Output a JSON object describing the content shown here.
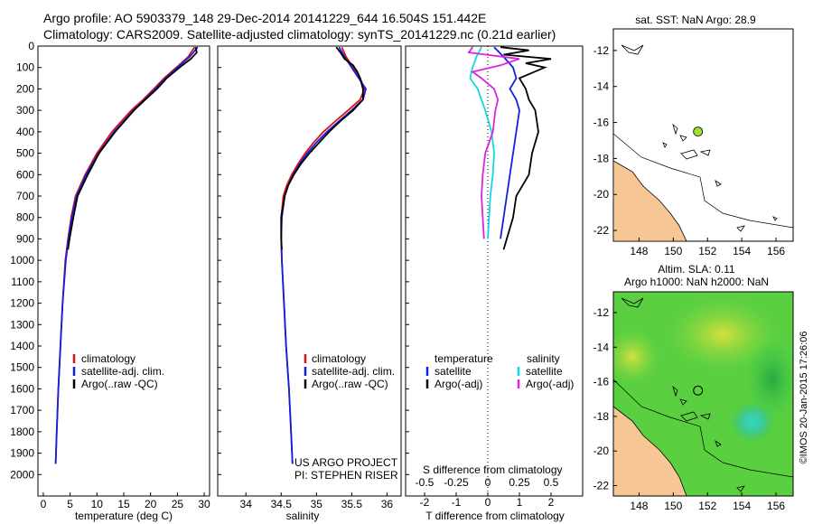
{
  "header": {
    "line1": "Argo profile: AO 5903379_148 29-Dec-2014 20141229_644 16.504S 151.442E",
    "line2": "Climatology: CARS2009. Satellite-adjusted climatology: synTS_20141229.nc (0.21d earlier)"
  },
  "side_credit": "©IMOS 20-Jan-2015 17:26:06",
  "project": {
    "line1": "US ARGO PROJECT",
    "line2": "PI: STEPHEN RISER"
  },
  "depth_ticks": [
    0,
    100,
    200,
    300,
    400,
    500,
    600,
    700,
    800,
    900,
    1000,
    1100,
    1200,
    1300,
    1400,
    1500,
    1600,
    1700,
    1800,
    1900,
    2000
  ],
  "colors": {
    "climatology": "#e01010",
    "satellite": "#1020e0",
    "argo": "#000000",
    "sal_satellite": "#10d8e0",
    "sal_argo": "#e020e0",
    "land": "#f6c694",
    "float_dot": "#a0e030"
  },
  "chart_data": [
    {
      "type": "line",
      "name": "temperature_profile",
      "xlabel": "temperature (deg C)",
      "ylabel": "",
      "xlim": [
        -1,
        31
      ],
      "ylim": [
        2100,
        0
      ],
      "xticks": [
        0,
        5,
        10,
        15,
        20,
        25,
        30
      ],
      "legend": [
        "climatology",
        "satellite-adj. clim.",
        "Argo(..raw -QC)"
      ],
      "legend_position": "lower-center",
      "series": [
        {
          "name": "climatology",
          "depth": [
            5,
            50,
            100,
            150,
            200,
            250,
            300,
            400,
            500,
            600,
            700,
            800,
            900,
            1000,
            1200,
            1400,
            1600,
            1800,
            1950
          ],
          "values": [
            28.2,
            27.0,
            24.8,
            22.5,
            20.6,
            18.6,
            16.4,
            12.8,
            10.0,
            7.8,
            6.0,
            5.2,
            4.6,
            4.1,
            3.6,
            3.2,
            2.8,
            2.5,
            2.3
          ]
        },
        {
          "name": "satellite-adj. clim.",
          "depth": [
            5,
            50,
            100,
            150,
            200,
            250,
            300,
            400,
            500,
            600,
            700,
            800,
            900,
            1000,
            1200,
            1400,
            1600,
            1800,
            1950
          ],
          "values": [
            28.8,
            27.3,
            25.0,
            22.8,
            20.9,
            18.9,
            16.8,
            13.2,
            10.3,
            8.0,
            6.2,
            5.3,
            4.7,
            4.2,
            3.6,
            3.2,
            2.8,
            2.5,
            2.3
          ]
        },
        {
          "name": "Argo(..raw -QC)",
          "depth": [
            5,
            30,
            60,
            100,
            150,
            200,
            250,
            300,
            400,
            500,
            600,
            700,
            800,
            900,
            950
          ],
          "values": [
            28.4,
            28.6,
            27.5,
            25.4,
            23.0,
            21.2,
            19.0,
            16.9,
            13.4,
            10.4,
            8.3,
            6.4,
            5.6,
            4.9,
            4.6
          ]
        }
      ]
    },
    {
      "type": "line",
      "name": "salinity_profile",
      "xlabel": "salinity",
      "ylabel": "",
      "xlim": [
        33.6,
        36.2
      ],
      "ylim": [
        2100,
        0
      ],
      "xticks": [
        34,
        34.5,
        35,
        35.5,
        36
      ],
      "legend": [
        "climatology",
        "satellite-adj. clim.",
        "Argo(..raw -QC)"
      ],
      "legend_position": "lower-center",
      "series": [
        {
          "name": "climatology",
          "depth": [
            5,
            50,
            100,
            150,
            200,
            250,
            300,
            350,
            400,
            450,
            500,
            550,
            600,
            650,
            700,
            800,
            900,
            1000,
            1200,
            1400,
            1600,
            1800,
            1950
          ],
          "values": [
            35.36,
            35.42,
            35.52,
            35.62,
            35.68,
            35.62,
            35.45,
            35.27,
            35.1,
            34.96,
            34.84,
            34.74,
            34.65,
            34.58,
            34.53,
            34.5,
            34.5,
            34.51,
            34.54,
            34.57,
            34.61,
            34.64,
            34.66
          ]
        },
        {
          "name": "satellite-adj. clim.",
          "depth": [
            5,
            50,
            100,
            150,
            200,
            250,
            300,
            350,
            400,
            450,
            500,
            550,
            600,
            650,
            700,
            800,
            900,
            1000,
            1200,
            1400,
            1600,
            1800,
            1950
          ],
          "values": [
            35.32,
            35.4,
            35.5,
            35.6,
            35.7,
            35.66,
            35.5,
            35.32,
            35.15,
            35.0,
            34.87,
            34.76,
            34.67,
            34.6,
            34.55,
            34.51,
            34.5,
            34.51,
            34.54,
            34.57,
            34.61,
            34.64,
            34.66
          ]
        },
        {
          "name": "Argo(..raw -QC)",
          "depth": [
            5,
            30,
            60,
            90,
            120,
            150,
            200,
            250,
            300,
            350,
            400,
            450,
            500,
            550,
            600,
            650,
            700,
            800,
            900,
            950
          ],
          "values": [
            35.28,
            35.34,
            35.4,
            35.52,
            35.58,
            35.62,
            35.66,
            35.66,
            35.52,
            35.34,
            35.18,
            35.04,
            34.9,
            34.78,
            34.68,
            34.6,
            34.55,
            34.5,
            34.5,
            34.51
          ]
        }
      ]
    },
    {
      "type": "line",
      "name": "difference_from_climatology",
      "xlabel_top": "S difference from climatology",
      "xlabel_bottom": "T difference from climatology",
      "xlim_T": [
        -2.6,
        3.0
      ],
      "xticks_T": [
        -2,
        -1,
        0,
        1,
        2
      ],
      "xlim_S": [
        -0.65,
        0.75
      ],
      "xticks_S": [
        -0.5,
        -0.25,
        0,
        0.25,
        0.5
      ],
      "ylim": [
        2100,
        0
      ],
      "legend": {
        "temperature_title": "temperature",
        "salinity_title": "salinity",
        "temperature_entries": [
          "satellite",
          "Argo(-adj)"
        ],
        "salinity_entries": [
          "satellite",
          "Argo(-adj)"
        ]
      },
      "series": [
        {
          "name": "temperature satellite",
          "axis": "T",
          "depth": [
            5,
            50,
            100,
            150,
            200,
            250,
            300,
            400,
            500,
            600,
            700,
            800,
            900
          ],
          "values": [
            0.2,
            0.5,
            0.8,
            0.9,
            0.7,
            0.9,
            1.0,
            0.9,
            0.8,
            0.7,
            0.6,
            0.5,
            0.4
          ]
        },
        {
          "name": "temperature Argo(-adj)",
          "axis": "T",
          "depth": [
            5,
            20,
            40,
            60,
            80,
            100,
            150,
            200,
            250,
            300,
            400,
            500,
            600,
            700,
            800,
            900,
            950
          ],
          "values": [
            0.4,
            1.3,
            0.5,
            2.0,
            1.2,
            1.8,
            1.0,
            1.2,
            1.3,
            1.5,
            1.6,
            1.4,
            1.3,
            0.9,
            0.8,
            0.6,
            0.5
          ]
        },
        {
          "name": "salinity satellite",
          "axis": "S",
          "depth": [
            5,
            50,
            100,
            150,
            200,
            250,
            300,
            400,
            500,
            600,
            700,
            800,
            900
          ],
          "values": [
            -0.05,
            -0.09,
            -0.12,
            -0.14,
            -0.08,
            -0.05,
            -0.02,
            0.03,
            0.05,
            0.04,
            0.02,
            0.01,
            0.0
          ]
        },
        {
          "name": "salinity Argo(-adj)",
          "axis": "S",
          "depth": [
            5,
            30,
            60,
            90,
            120,
            150,
            200,
            250,
            300,
            400,
            500,
            600,
            700,
            800,
            900
          ],
          "values": [
            -0.12,
            -0.15,
            0.25,
            0.1,
            -0.12,
            -0.05,
            0.05,
            0.08,
            0.06,
            0.04,
            -0.02,
            -0.04,
            -0.05,
            -0.04,
            -0.03
          ]
        }
      ]
    },
    {
      "type": "scatter",
      "name": "sst_map",
      "title": "sat. SST: NaN Argo: 28.9",
      "xlim": [
        146.5,
        157
      ],
      "ylim": [
        -22.6,
        -10.8
      ],
      "xticks": [
        148,
        150,
        152,
        154,
        156
      ],
      "yticks": [
        -12,
        -14,
        -16,
        -18,
        -20,
        -22
      ],
      "float": {
        "lon": 151.442,
        "lat": -16.504
      }
    },
    {
      "type": "heatmap",
      "name": "sla_map",
      "title_line1": "Altim. SLA: 0.11",
      "title_line2": "Argo h1000: NaN h2000: NaN",
      "xlim": [
        146.5,
        157
      ],
      "ylim": [
        -22.6,
        -10.8
      ],
      "xticks": [
        148,
        150,
        152,
        154,
        156
      ],
      "yticks": [
        -12,
        -14,
        -16,
        -18,
        -20,
        -22
      ],
      "float": {
        "lon": 151.442,
        "lat": -16.504
      }
    }
  ]
}
